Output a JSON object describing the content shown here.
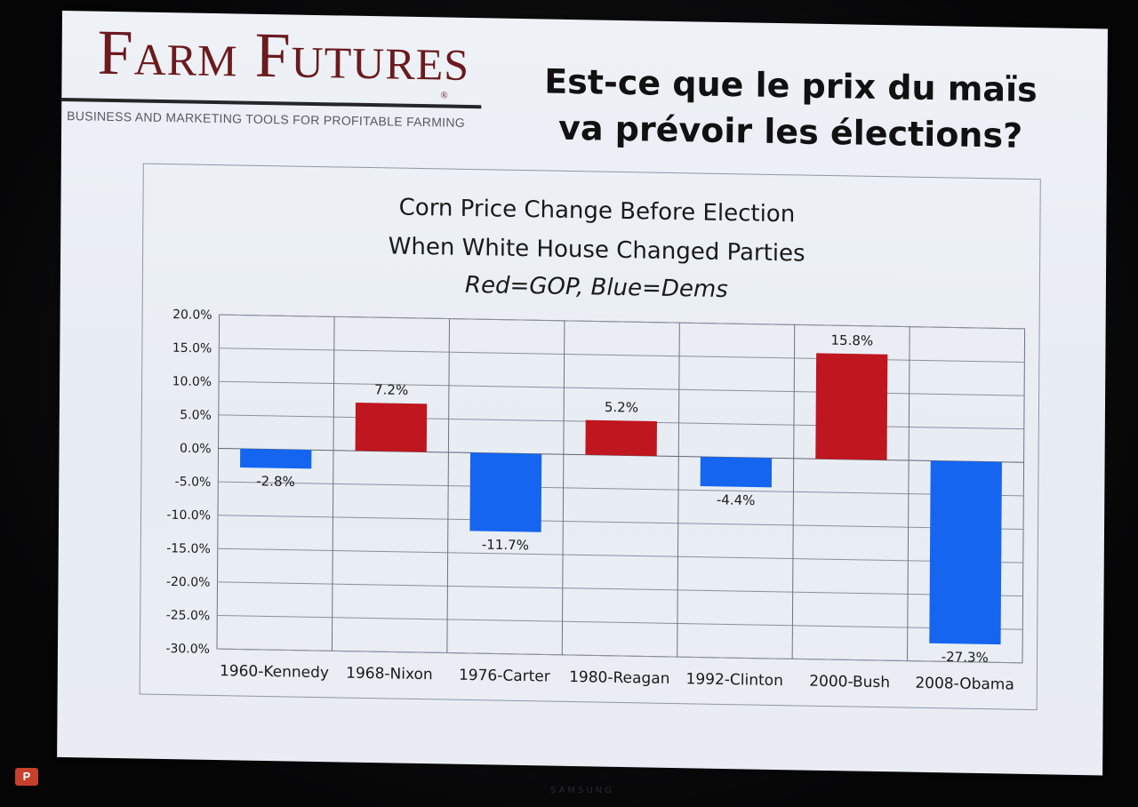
{
  "logo": {
    "name": "Farm Futures",
    "reg": "®",
    "tagline": "BUSINESS AND MARKETING TOOLS FOR PROFITABLE FARMING"
  },
  "heading": {
    "line1": "Est-ce que le prix du maïs",
    "line2": "va prévoir les élections?"
  },
  "taskbar": {
    "app_icon": "powerpoint-icon",
    "app_icon_text": "P",
    "monitor_brand": "SAMSUNG"
  },
  "colors": {
    "gop": "#c0161f",
    "dems": "#1565f0"
  },
  "chart_data": {
    "type": "bar",
    "title": "Corn Price Change Before Election",
    "title2": "When White House Changed Parties",
    "subtitle": "Red=GOP, Blue=Dems",
    "categories": [
      "1960-Kennedy",
      "1968-Nixon",
      "1976-Carter",
      "1980-Reagan",
      "1992-Clinton",
      "2000-Bush",
      "2008-Obama"
    ],
    "values": [
      -2.8,
      7.2,
      -11.7,
      5.2,
      -4.4,
      15.8,
      -27.3
    ],
    "value_labels": [
      "-2.8%",
      "7.2%",
      "-11.7%",
      "5.2%",
      "-4.4%",
      "15.8%",
      "-27.3%"
    ],
    "party": [
      "Dems",
      "GOP",
      "Dems",
      "GOP",
      "Dems",
      "GOP",
      "Dems"
    ],
    "yticks": [
      "20.0%",
      "15.0%",
      "10.0%",
      "5.0%",
      "0.0%",
      "-5.0%",
      "-10.0%",
      "-15.0%",
      "-20.0%",
      "-25.0%",
      "-30.0%"
    ],
    "ylim": [
      -30,
      20
    ],
    "ystep": 5,
    "grid": true
  }
}
